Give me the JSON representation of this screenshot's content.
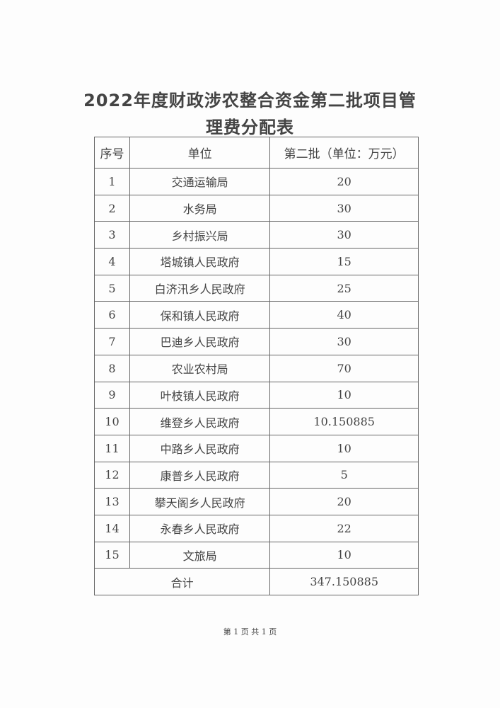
{
  "title_line1": "2022年度财政涉农整合资金第二批项目管",
  "title_line2": "理费分配表",
  "table": {
    "headers": [
      "序号",
      "单位",
      "第二批（单位：万元）"
    ],
    "rows": [
      [
        "1",
        "交通运输局",
        "20"
      ],
      [
        "2",
        "水务局",
        "30"
      ],
      [
        "3",
        "乡村振兴局",
        "30"
      ],
      [
        "4",
        "塔城镇人民政府",
        "15"
      ],
      [
        "5",
        "白济汛乡人民政府",
        "25"
      ],
      [
        "6",
        "保和镇人民政府",
        "40"
      ],
      [
        "7",
        "巴迪乡人民政府",
        "30"
      ],
      [
        "8",
        "农业农村局",
        "70"
      ],
      [
        "9",
        "叶枝镇人民政府",
        "10"
      ],
      [
        "10",
        "维登乡人民政府",
        "10.150885"
      ],
      [
        "11",
        "中路乡人民政府",
        "10"
      ],
      [
        "12",
        "康普乡人民政府",
        "5"
      ],
      [
        "13",
        "攀天阁乡人民政府",
        "20"
      ],
      [
        "14",
        "永春乡人民政府",
        "22"
      ],
      [
        "15",
        "文旅局",
        "10"
      ]
    ],
    "total_label": "合计",
    "total_value": "347.150885"
  },
  "footer": "第 1 页 共 1 页"
}
